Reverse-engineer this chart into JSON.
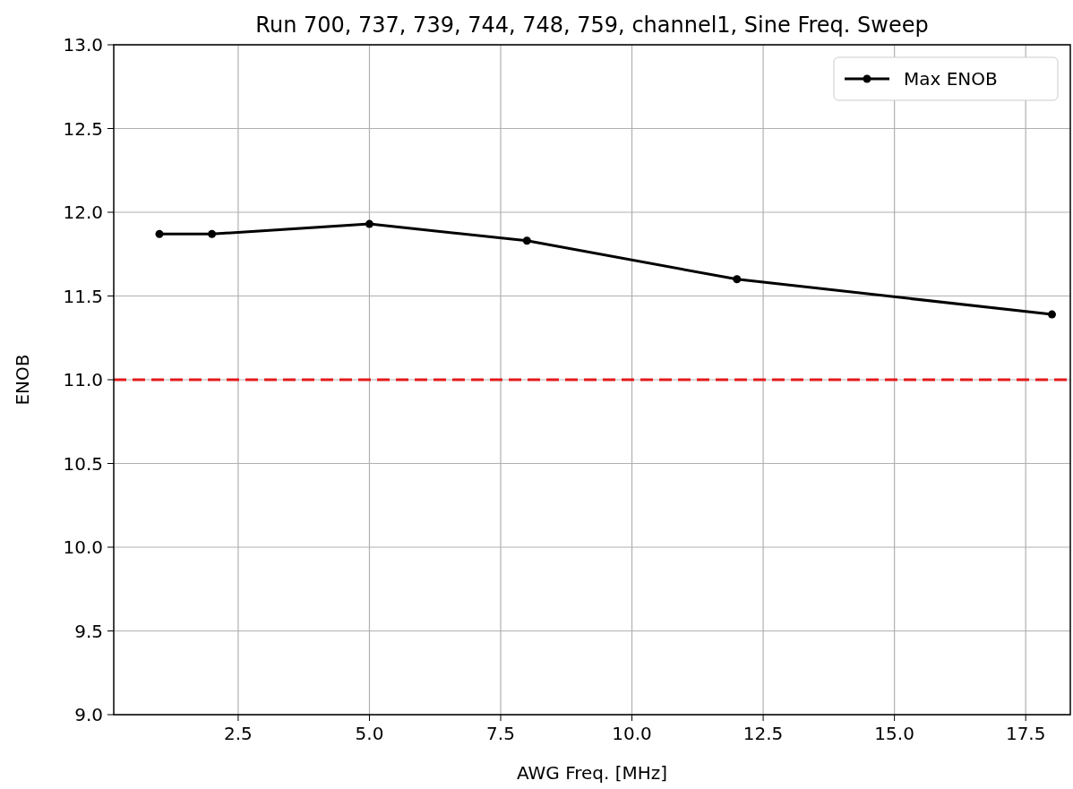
{
  "chart_data": {
    "type": "line",
    "title": "Run 700, 737, 739, 744, 748, 759, channel1, Sine Freq. Sweep",
    "xlabel": "AWG Freq. [MHz]",
    "ylabel": "ENOB",
    "x": [
      1,
      2,
      5,
      8,
      12,
      18
    ],
    "series": [
      {
        "name": "Max ENOB",
        "color": "#000000",
        "values": [
          11.87,
          11.87,
          11.93,
          11.83,
          11.6,
          11.39
        ]
      }
    ],
    "xlim": [
      0.13,
      18.35
    ],
    "xticks": [
      {
        "value": 2.5,
        "label": "2.5"
      },
      {
        "value": 5,
        "label": "5.0"
      },
      {
        "value": 7.5,
        "label": "7.5"
      },
      {
        "value": 10,
        "label": "10.0"
      },
      {
        "value": 12.5,
        "label": "12.5"
      },
      {
        "value": 15,
        "label": "15.0"
      },
      {
        "value": 17.5,
        "label": "17.5"
      }
    ],
    "ylim": [
      9,
      13
    ],
    "yticks": [
      {
        "value": 9,
        "label": "9.0"
      },
      {
        "value": 9.5,
        "label": "9.5"
      },
      {
        "value": 10,
        "label": "10.0"
      },
      {
        "value": 10.5,
        "label": "10.5"
      },
      {
        "value": 11,
        "label": "11.0"
      },
      {
        "value": 11.5,
        "label": "11.5"
      },
      {
        "value": 12,
        "label": "12.0"
      },
      {
        "value": 12.5,
        "label": "12.5"
      },
      {
        "value": 13,
        "label": "13.0"
      }
    ],
    "ref_lines": [
      {
        "axis": "y",
        "value": 11,
        "color": "#e41a1c",
        "line_style": "dashed"
      }
    ],
    "grid": true,
    "legend": "top right",
    "marker": "circle",
    "line_style": "solid"
  }
}
